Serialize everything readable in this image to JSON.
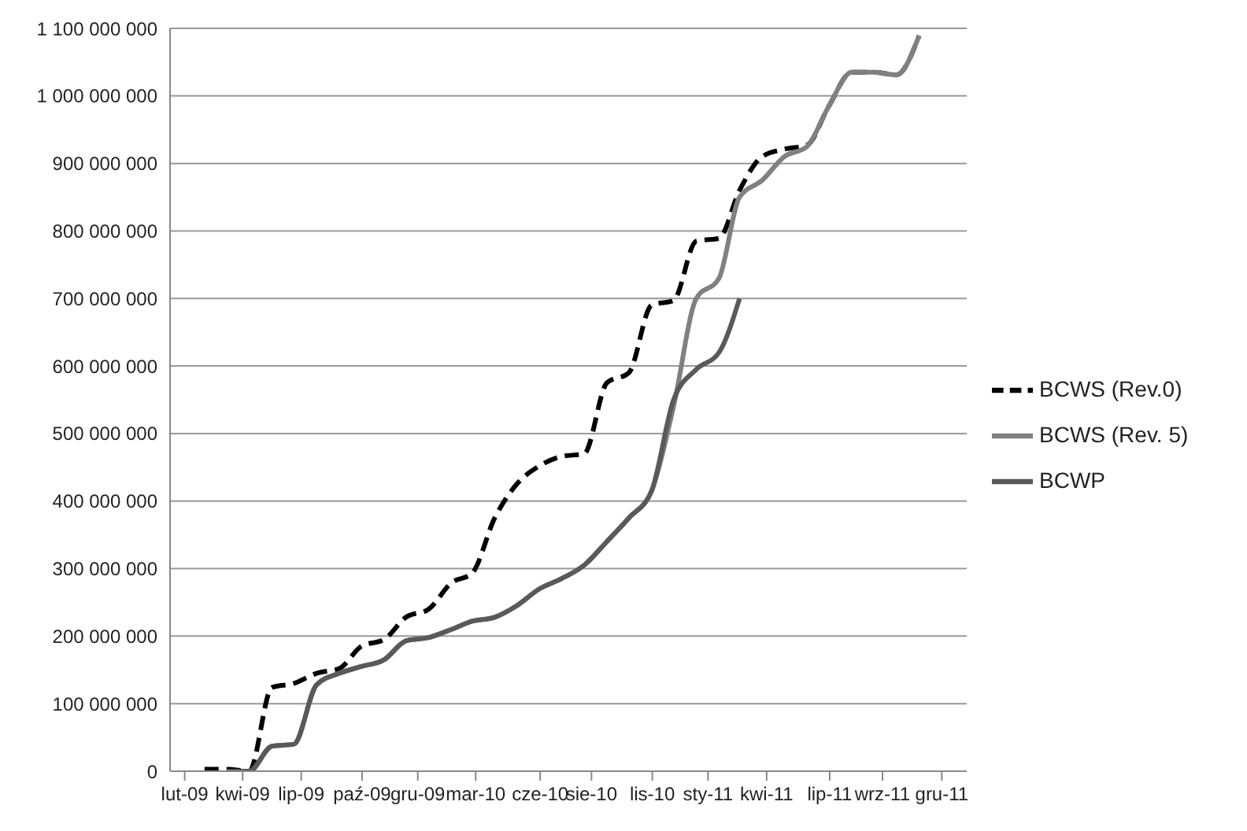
{
  "chart_data": {
    "type": "line",
    "x": [
      "2009-02-28",
      "2009-03-31",
      "2009-04-30",
      "2009-05-31",
      "2009-06-30",
      "2009-07-31",
      "2009-08-31",
      "2009-09-30",
      "2009-10-31",
      "2009-11-30",
      "2009-12-31",
      "2010-01-31",
      "2010-02-28",
      "2010-03-31",
      "2010-04-30",
      "2010-05-31",
      "2010-06-30",
      "2010-07-31",
      "2010-08-31",
      "2010-09-30",
      "2010-10-31",
      "2010-11-30",
      "2010-12-31",
      "2011-01-31",
      "2011-02-28",
      "2011-03-31",
      "2011-04-30",
      "2011-05-31",
      "2011-06-30",
      "2011-07-31",
      "2011-08-31",
      "2011-09-30",
      "2011-10-31"
    ],
    "series": [
      {
        "name": "BCWS (Rev.0)",
        "color": "#000000",
        "line_style": "dashed",
        "values": [
          3000000,
          3000000,
          0,
          124000000,
          130000000,
          145000000,
          152000000,
          185000000,
          195000000,
          228000000,
          240000000,
          279000000,
          293000000,
          375000000,
          425000000,
          452000000,
          466000000,
          470000000,
          575000000,
          590000000,
          690000000,
          697000000,
          785000000,
          789000000,
          860000000,
          910000000,
          921000000,
          927000000,
          985000000,
          1035000000,
          1035000000,
          1031000000,
          1089000000
        ]
      },
      {
        "name": "BCWS (Rev. 5)",
        "color": "#808080",
        "line_style": "solid",
        "values": [
          null,
          0,
          0,
          37000000,
          40000000,
          128000000,
          145000000,
          155000000,
          165000000,
          193000000,
          198000000,
          210000000,
          222000000,
          228000000,
          245000000,
          270000000,
          285000000,
          305000000,
          340000000,
          375000000,
          415000000,
          540000000,
          700000000,
          730000000,
          850000000,
          875000000,
          910000000,
          925000000,
          985000000,
          1035000000,
          1035000000,
          1031000000,
          1089000000
        ]
      },
      {
        "name": "BCWP",
        "color": "#595959",
        "line_style": "solid",
        "values": [
          null,
          0,
          0,
          37000000,
          40000000,
          128000000,
          145000000,
          155000000,
          165000000,
          193000000,
          198000000,
          210000000,
          222000000,
          228000000,
          245000000,
          270000000,
          285000000,
          305000000,
          340000000,
          375000000,
          415000000,
          550000000,
          595000000,
          620000000,
          700000000,
          null,
          null,
          null,
          null,
          null,
          null,
          null,
          null
        ]
      }
    ],
    "xlim": [
      "2009-01-12",
      "2012-01-04"
    ],
    "xticks": [
      {
        "value": "2009-02-01",
        "label": "lut-09"
      },
      {
        "value": "2009-04-21",
        "label": "kwi-09"
      },
      {
        "value": "2009-07-10",
        "label": "lip-09"
      },
      {
        "value": "2009-10-01",
        "label": "paź-09"
      },
      {
        "value": "2009-12-16",
        "label": "gru-09"
      },
      {
        "value": "2010-03-05",
        "label": "mar-10"
      },
      {
        "value": "2010-06-01",
        "label": "cze-10"
      },
      {
        "value": "2010-08-10",
        "label": "sie-10"
      },
      {
        "value": "2010-11-01",
        "label": "lis-10"
      },
      {
        "value": "2011-01-16",
        "label": "sty-11"
      },
      {
        "value": "2011-04-06",
        "label": "kwi-11"
      },
      {
        "value": "2011-07-01",
        "label": "lip-11"
      },
      {
        "value": "2011-09-11",
        "label": "wrz-11"
      },
      {
        "value": "2011-12-01",
        "label": "gru-11"
      }
    ],
    "ylim": [
      0,
      1100000000
    ],
    "yticks": [
      0,
      {
        "value": 100000000,
        "label": "100 000 000"
      },
      {
        "value": 200000000,
        "label": "200 000 000"
      },
      {
        "value": 300000000,
        "label": "300 000 000"
      },
      {
        "value": 400000000,
        "label": "400 000 000"
      },
      {
        "value": 500000000,
        "label": "500 000 000"
      },
      {
        "value": 600000000,
        "label": "600 000 000"
      },
      {
        "value": 700000000,
        "label": "700 000 000"
      },
      {
        "value": 800000000,
        "label": "800 000 000"
      },
      {
        "value": 900000000,
        "label": "900 000 000"
      },
      {
        "value": 1000000000,
        "label": "1 000 000 000"
      },
      {
        "value": 1100000000,
        "label": "1 100 000 000"
      }
    ],
    "grid": "y",
    "legend": "right",
    "marker": "none"
  }
}
